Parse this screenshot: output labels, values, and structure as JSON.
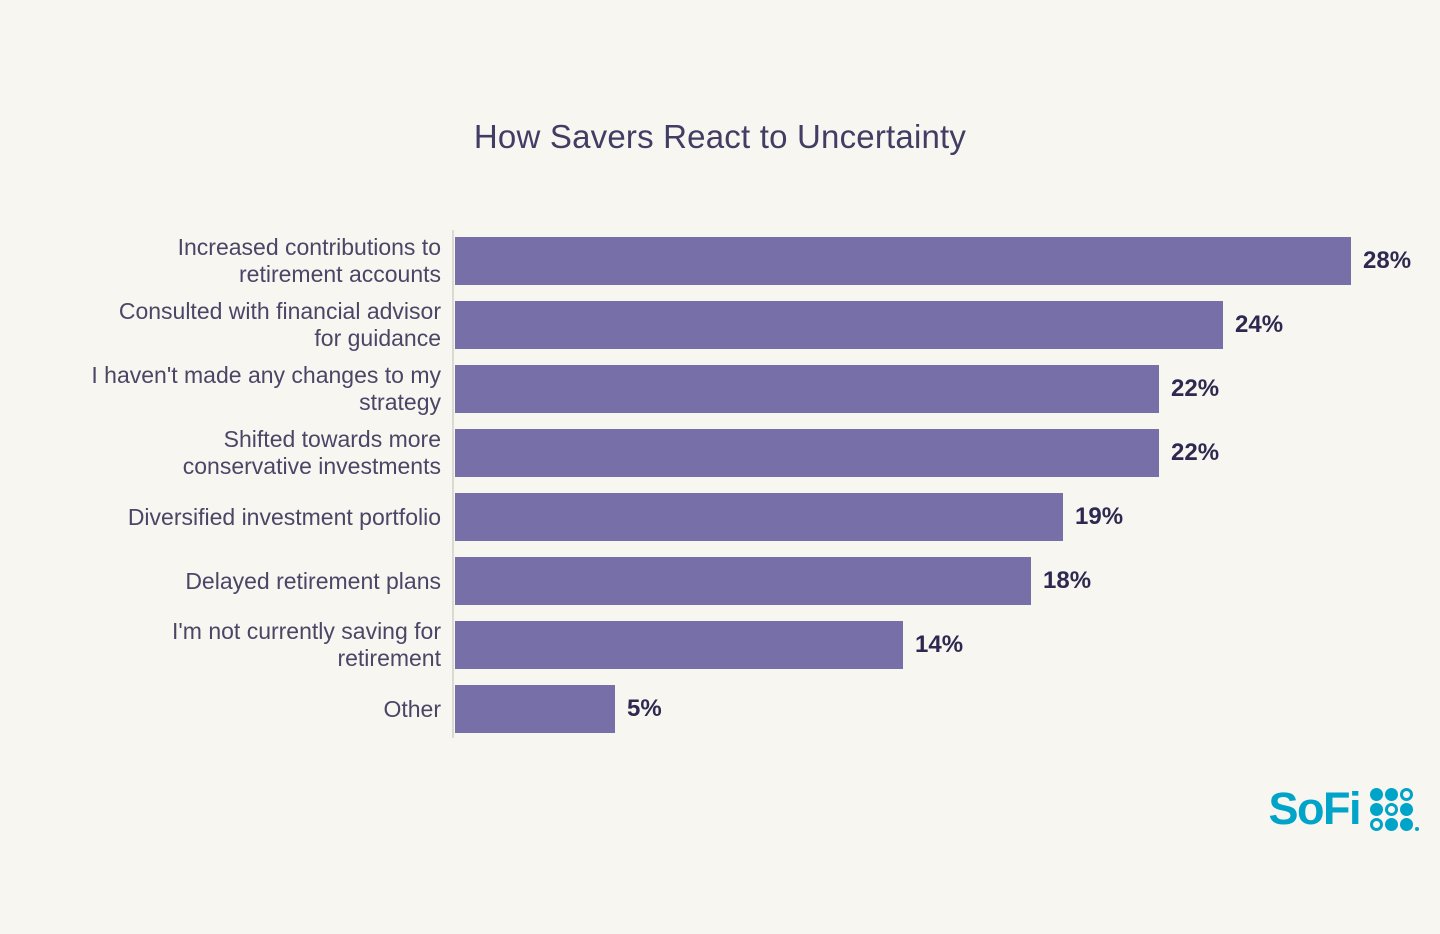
{
  "title": "How Savers React to Uncertainty",
  "colors": {
    "background": "#f8f6f1",
    "bar": "#766fa8",
    "title_text": "#413d63",
    "label_text": "#4b4666",
    "value_text": "#2d2951",
    "axis_line": "#dcd9d2",
    "logo_teal": "#00a4c8"
  },
  "chart_data": {
    "type": "bar",
    "orientation": "horizontal",
    "title": "How Savers React to Uncertainty",
    "categories": [
      "Increased contributions to\nretirement accounts",
      "Consulted with financial advisor\nfor guidance",
      "I haven't made any changes to my\nstrategy",
      "Shifted towards more\nconservative investments",
      "Diversified investment portfolio",
      "Delayed retirement plans",
      "I'm not currently saving for\nretirement",
      "Other"
    ],
    "values": [
      28,
      24,
      22,
      22,
      19,
      18,
      14,
      5
    ],
    "value_labels": [
      "28%",
      "24%",
      "22%",
      "22%",
      "19%",
      "18%",
      "14%",
      "5%"
    ],
    "xlim": [
      0,
      28
    ],
    "grid": false,
    "legend": false,
    "data_labels_position": "outside-end"
  },
  "logo": {
    "text": "SoFi",
    "icon": "sofi-dot-grid",
    "dot_pattern": [
      [
        "filled",
        "filled",
        "ring"
      ],
      [
        "filled",
        "ring",
        "filled"
      ],
      [
        "ring",
        "filled",
        "filled"
      ]
    ]
  }
}
